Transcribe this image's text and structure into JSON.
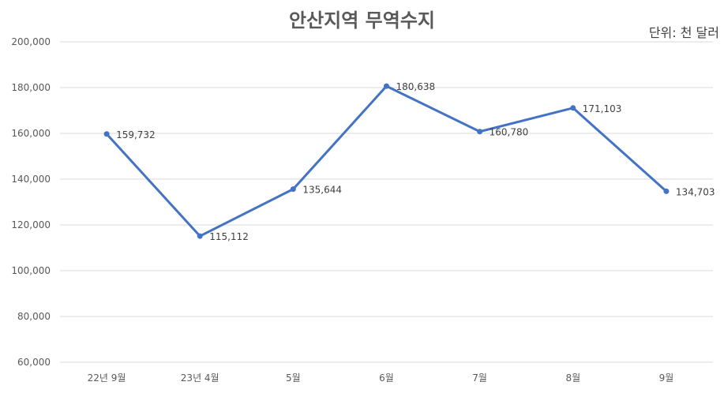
{
  "chart_data": {
    "type": "line",
    "title": "안산지역 무역수지",
    "unit_label": "단위: 천 달러",
    "categories": [
      "22년 9월",
      "23년 4월",
      "5월",
      "6월",
      "7월",
      "8월",
      "9월"
    ],
    "series": [
      {
        "values": [
          159732,
          115112,
          135644,
          180638,
          160780,
          171103,
          134703
        ],
        "data_labels": [
          "159,732",
          "115,112",
          "135,644",
          "180,638",
          "160,780",
          "171,103",
          "134,703"
        ]
      }
    ],
    "y_ticks": [
      "60,000",
      "80,000",
      "100,000",
      "120,000",
      "140,000",
      "160,000",
      "180,000",
      "200,000"
    ],
    "ylim": [
      60000,
      200000
    ],
    "grid": true,
    "line_color": "#4472C4",
    "grid_color": "#d9d9d9"
  }
}
